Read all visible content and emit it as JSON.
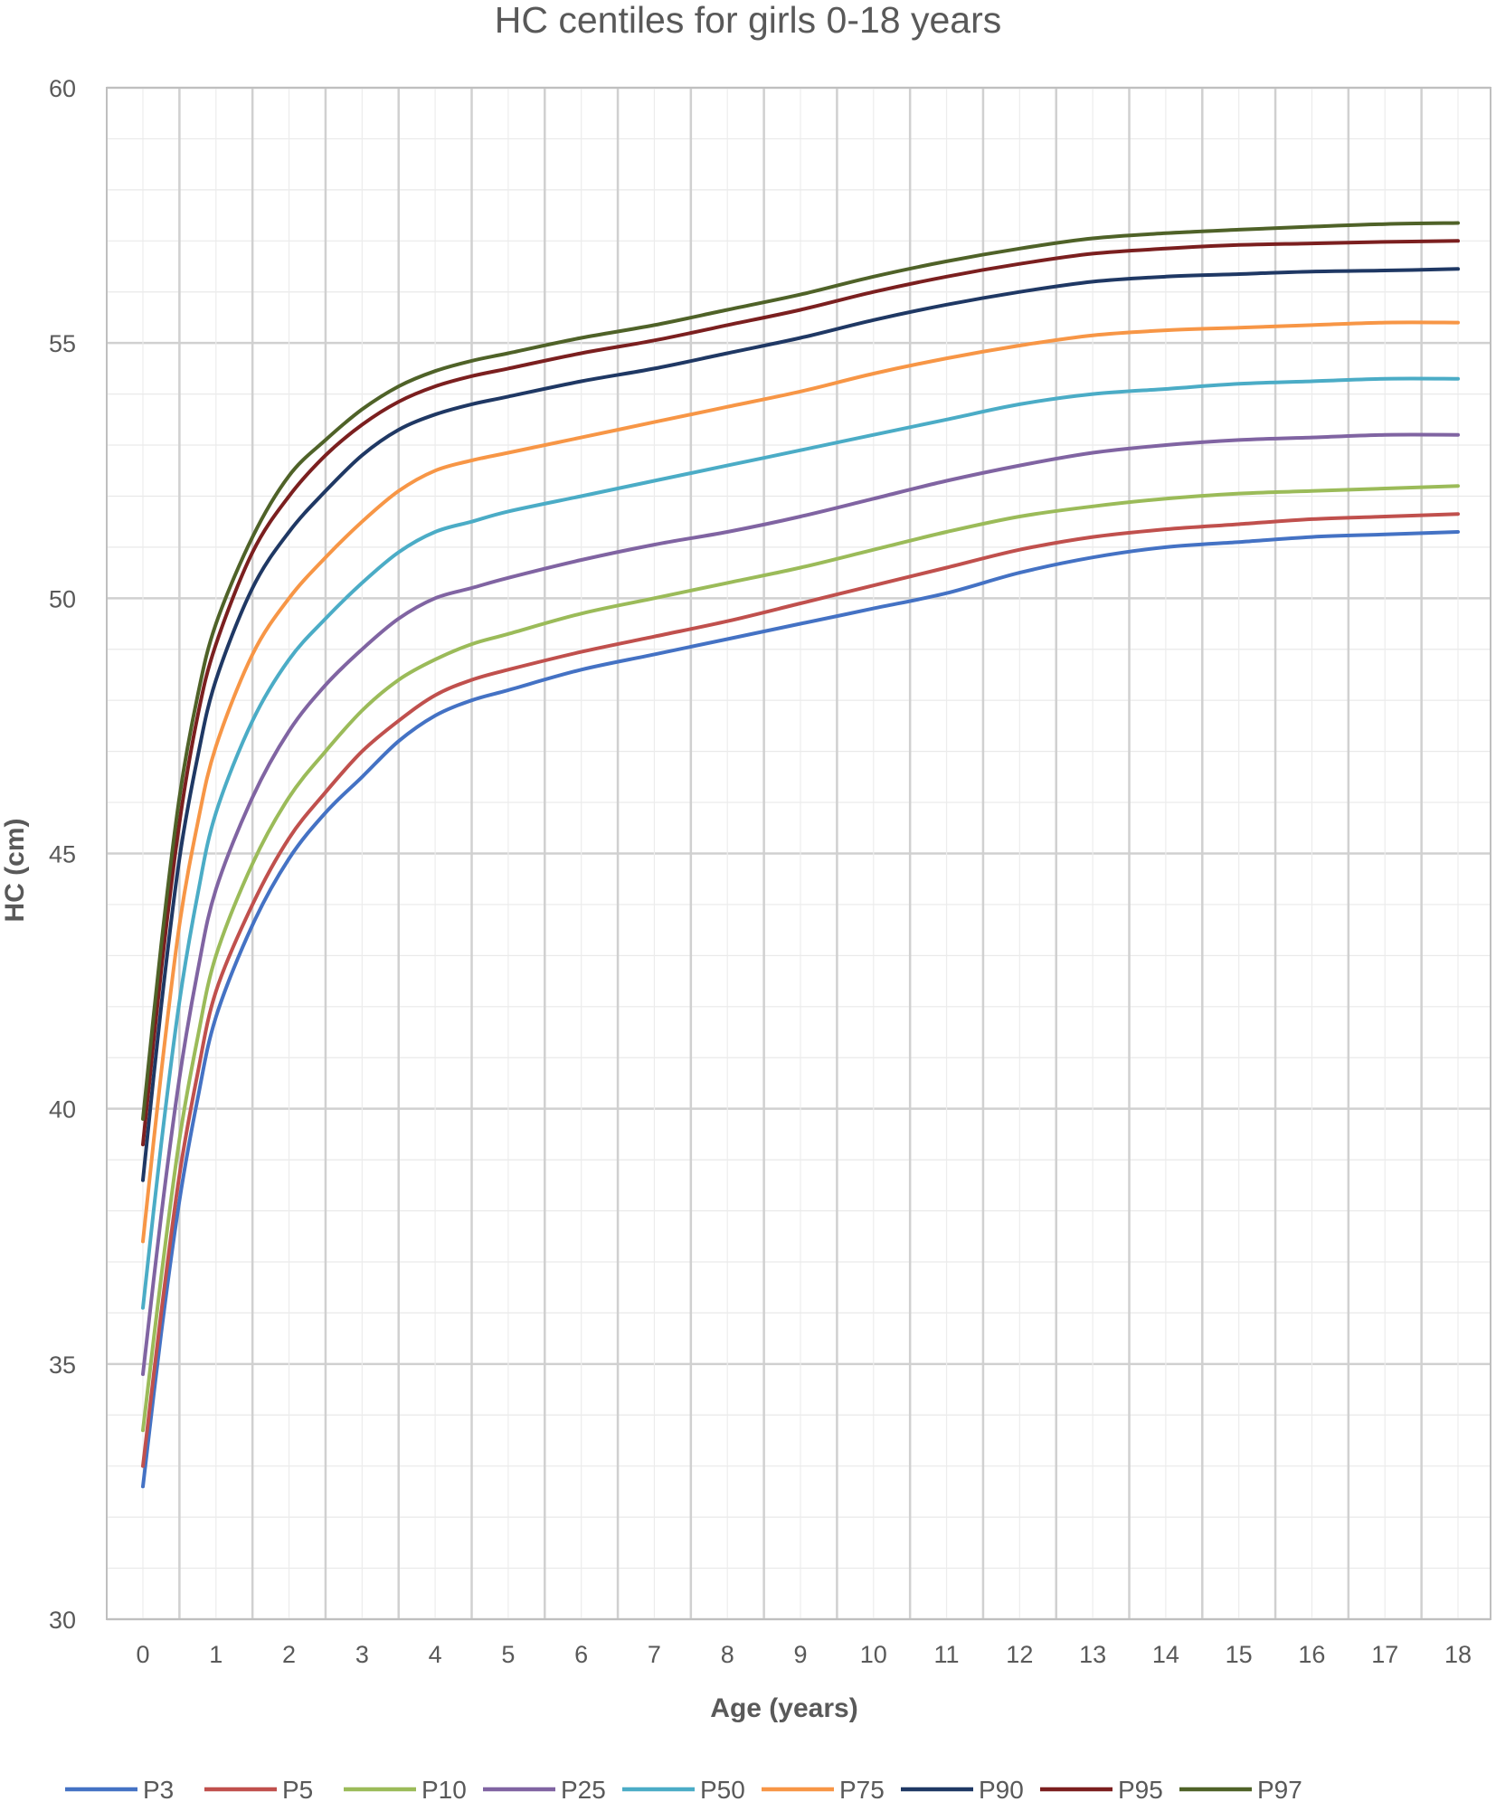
{
  "chart_data": {
    "type": "line",
    "title": "HC centiles for girls 0-18 years",
    "xlabel": "Age (years)",
    "ylabel": "HC (cm)",
    "xlim": [
      0,
      18
    ],
    "ylim": [
      30,
      60
    ],
    "xticks": [
      "0",
      "1",
      "2",
      "3",
      "4",
      "5",
      "6",
      "7",
      "8",
      "9",
      "10",
      "11",
      "12",
      "13",
      "14",
      "15",
      "16",
      "17",
      "18"
    ],
    "yticks": [
      "30",
      "35",
      "40",
      "45",
      "50",
      "55",
      "60"
    ],
    "grid": true,
    "legend": "bottom",
    "x": [
      0,
      0.25,
      0.5,
      0.75,
      1,
      1.5,
      2,
      2.5,
      3,
      3.5,
      4,
      4.5,
      5,
      6,
      7,
      8,
      9,
      10,
      11,
      12,
      13,
      14,
      15,
      16,
      17,
      18
    ],
    "series": [
      {
        "name": "P3",
        "color": "#4472C4",
        "values": [
          32.6,
          35.6,
          38.2,
          40.2,
          41.8,
          43.6,
          44.9,
          45.8,
          46.5,
          47.2,
          47.7,
          48.0,
          48.2,
          48.6,
          48.9,
          49.2,
          49.5,
          49.8,
          50.1,
          50.5,
          50.8,
          51.0,
          51.1,
          51.2,
          51.25,
          51.3
        ]
      },
      {
        "name": "P5",
        "color": "#C0504D",
        "values": [
          33.0,
          36.0,
          38.7,
          40.7,
          42.3,
          44.0,
          45.3,
          46.2,
          47.0,
          47.6,
          48.1,
          48.4,
          48.6,
          48.95,
          49.25,
          49.55,
          49.9,
          50.25,
          50.6,
          50.95,
          51.2,
          51.35,
          51.45,
          51.55,
          51.6,
          51.65
        ]
      },
      {
        "name": "P10",
        "color": "#9BBB59",
        "values": [
          33.7,
          36.7,
          39.4,
          41.4,
          43.0,
          44.8,
          46.1,
          47.0,
          47.8,
          48.4,
          48.8,
          49.1,
          49.3,
          49.7,
          50.0,
          50.3,
          50.6,
          50.95,
          51.3,
          51.6,
          51.8,
          51.95,
          52.05,
          52.1,
          52.15,
          52.2
        ]
      },
      {
        "name": "P25",
        "color": "#8064A2",
        "values": [
          34.8,
          37.9,
          40.6,
          42.7,
          44.3,
          46.1,
          47.4,
          48.3,
          49.0,
          49.6,
          50.0,
          50.2,
          50.4,
          50.75,
          51.05,
          51.3,
          51.6,
          51.95,
          52.3,
          52.6,
          52.85,
          53.0,
          53.1,
          53.15,
          53.2,
          53.2
        ]
      },
      {
        "name": "P50",
        "color": "#4BACC6",
        "values": [
          36.1,
          39.3,
          42.1,
          44.2,
          45.8,
          47.6,
          48.8,
          49.6,
          50.3,
          50.9,
          51.3,
          51.5,
          51.7,
          52.0,
          52.3,
          52.6,
          52.9,
          53.2,
          53.5,
          53.8,
          54.0,
          54.1,
          54.2,
          54.25,
          54.3,
          54.3
        ]
      },
      {
        "name": "P75",
        "color": "#F79646",
        "values": [
          37.4,
          40.7,
          43.6,
          45.6,
          47.1,
          48.9,
          50.0,
          50.8,
          51.5,
          52.1,
          52.5,
          52.7,
          52.85,
          53.15,
          53.45,
          53.75,
          54.05,
          54.4,
          54.7,
          54.95,
          55.15,
          55.25,
          55.3,
          55.35,
          55.4,
          55.4
        ]
      },
      {
        "name": "P90",
        "color": "#1F3864",
        "values": [
          38.6,
          42.0,
          44.9,
          46.9,
          48.4,
          50.2,
          51.3,
          52.1,
          52.8,
          53.3,
          53.6,
          53.8,
          53.95,
          54.25,
          54.5,
          54.8,
          55.1,
          55.45,
          55.75,
          56.0,
          56.2,
          56.3,
          56.35,
          56.4,
          56.42,
          56.45
        ]
      },
      {
        "name": "P95",
        "color": "#7B1F1F",
        "values": [
          39.3,
          42.7,
          45.6,
          47.7,
          49.1,
          50.9,
          52.0,
          52.8,
          53.4,
          53.85,
          54.15,
          54.35,
          54.5,
          54.8,
          55.05,
          55.35,
          55.65,
          56.0,
          56.3,
          56.55,
          56.75,
          56.85,
          56.92,
          56.95,
          56.98,
          57.0
        ]
      },
      {
        "name": "P97",
        "color": "#4F6228",
        "values": [
          39.8,
          43.2,
          46.1,
          48.1,
          49.5,
          51.2,
          52.4,
          53.1,
          53.7,
          54.15,
          54.45,
          54.65,
          54.8,
          55.1,
          55.35,
          55.65,
          55.95,
          56.3,
          56.6,
          56.85,
          57.05,
          57.15,
          57.22,
          57.28,
          57.33,
          57.35
        ]
      }
    ]
  }
}
